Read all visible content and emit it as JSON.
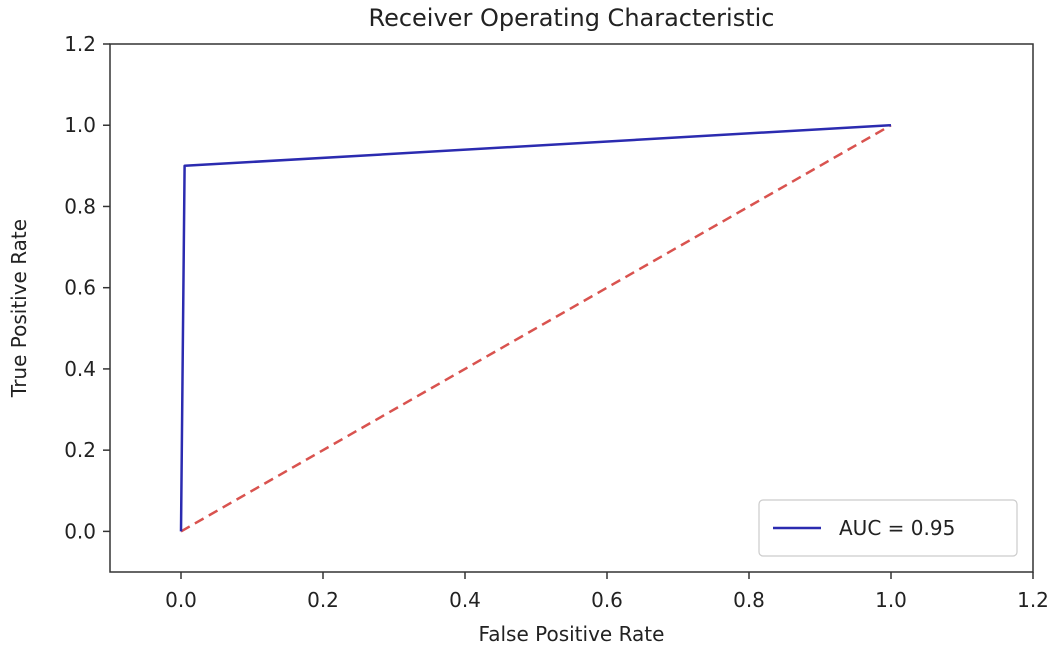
{
  "chart_data": {
    "type": "line",
    "title": "Receiver Operating Characteristic",
    "xlabel": "False Positive Rate",
    "ylabel": "True Positive Rate",
    "xlim": [
      -0.1,
      1.2
    ],
    "ylim": [
      -0.1,
      1.2
    ],
    "xticks": [
      "0.0",
      "0.2",
      "0.4",
      "0.6",
      "0.8",
      "1.0",
      "1.2"
    ],
    "yticks": [
      "0.0",
      "0.2",
      "0.4",
      "0.6",
      "0.8",
      "1.0",
      "1.2"
    ],
    "grid": false,
    "legend_position": "lower-right",
    "series": [
      {
        "name": "AUC = 0.95",
        "color": "#2b2bb0",
        "style": "solid",
        "x": [
          0.0,
          0.005,
          1.0
        ],
        "y": [
          0.0,
          0.9,
          1.0
        ]
      },
      {
        "color": "#d9534f",
        "style": "dashed",
        "x": [
          0.0,
          1.0
        ],
        "y": [
          0.0,
          1.0
        ]
      }
    ]
  }
}
